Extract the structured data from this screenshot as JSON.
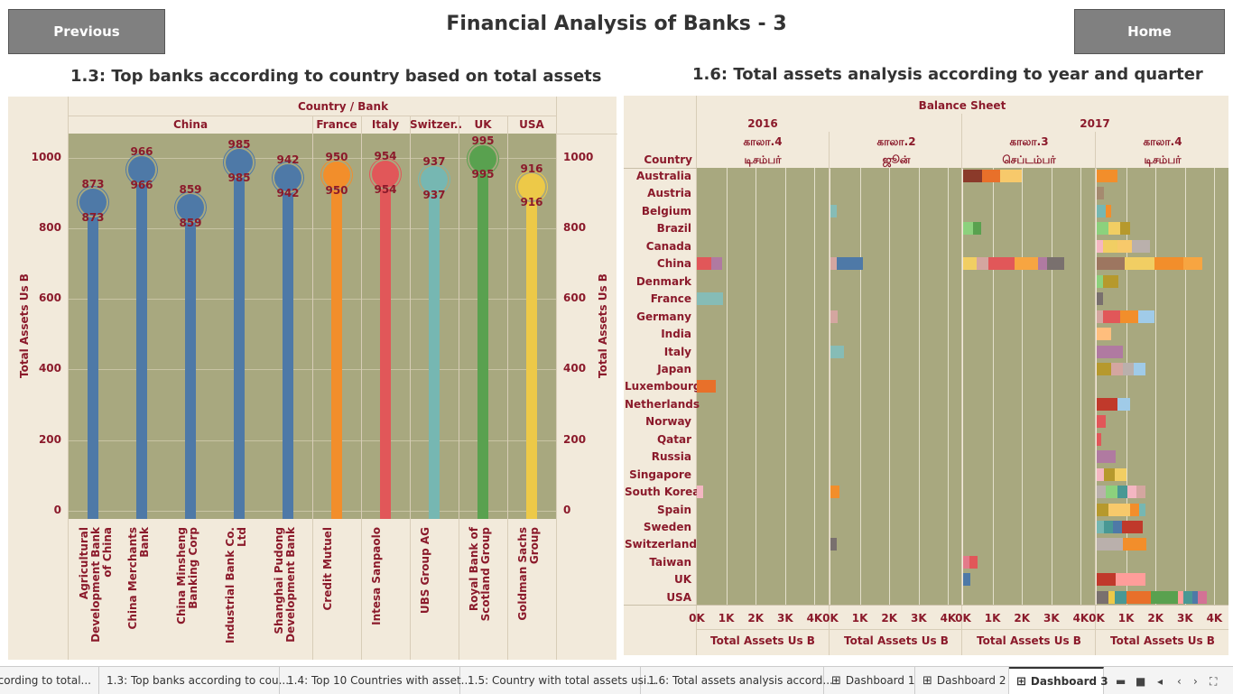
{
  "header": {
    "title": "Financial Analysis of Banks - 3",
    "previous_label": "Previous",
    "home_label": "Home"
  },
  "left_panel": {
    "title": "1.3: Top banks according to country based on total assets",
    "header_label": "Country / Bank"
  },
  "right_panel": {
    "title": "1.6: Total assets analysis according to year and quarter",
    "header_label": "Balance Sheet",
    "country_header": "Country"
  },
  "colors": {
    "plot_bg": "#a8a87f",
    "panel_bg": "#f2eadb",
    "label": "#8b1a2b"
  },
  "chart_data": [
    {
      "type": "lollipop",
      "title": "1.3: Top banks according to country based on total assets",
      "ylabel": "Total Assets Us B",
      "ylim": [
        0,
        1100
      ],
      "yticks": [
        "0",
        "200",
        "400",
        "600",
        "800",
        "1000"
      ],
      "groups": [
        {
          "country": "China",
          "banks": [
            {
              "name": "Agricultural Development Bank of China",
              "value": 873,
              "label": "873",
              "color": "#4e79a7"
            },
            {
              "name": "China Merchants Bank",
              "value": 966,
              "label": "966",
              "color": "#4e79a7"
            },
            {
              "name": "China Minsheng Banking Corp",
              "value": 859,
              "label": "859",
              "color": "#4e79a7"
            },
            {
              "name": "Industrial Bank Co. Ltd",
              "value": 985,
              "label": "985",
              "color": "#4e79a7"
            },
            {
              "name": "Shanghai Pudong Development Bank",
              "value": 942,
              "label": "942",
              "color": "#4e79a7"
            }
          ]
        },
        {
          "country": "France",
          "banks": [
            {
              "name": "Credit Mutuel",
              "value": 950,
              "label": "950",
              "color": "#f28e2b"
            }
          ]
        },
        {
          "country": "Italy",
          "banks": [
            {
              "name": "Intesa Sanpaolo",
              "value": 954,
              "label": "954",
              "color": "#e15759"
            }
          ]
        },
        {
          "country": "Switzer..",
          "banks": [
            {
              "name": "UBS Group AG",
              "value": 937,
              "label": "937",
              "color": "#76b7b2"
            }
          ]
        },
        {
          "country": "UK",
          "banks": [
            {
              "name": "Royal Bank of Scotland Group",
              "value": 995,
              "label": "995",
              "color": "#59a14f"
            }
          ]
        },
        {
          "country": "USA",
          "banks": [
            {
              "name": "Goldman Sachs Group",
              "value": 916,
              "label": "916",
              "color": "#edc948"
            }
          ]
        }
      ]
    },
    {
      "type": "bar",
      "stacked": true,
      "title": "1.6: Total assets analysis according to year and quarter",
      "xlabel": "Total Assets Us B",
      "xlim": [
        0,
        4500
      ],
      "xticks": [
        "0K",
        "1K",
        "2K",
        "3K",
        "4K"
      ],
      "columns": [
        {
          "year": "2016",
          "quarter": "காலா.4",
          "month": "டிசம்பர்"
        },
        {
          "year": "",
          "quarter": "காலா.2",
          "month": "ஜூன்"
        },
        {
          "year": "2017",
          "quarter": "காலா.3",
          "month": "செப்டம்பர்"
        },
        {
          "year": "",
          "quarter": "காலா.4",
          "month": "டிசம்பர்"
        }
      ],
      "categories": [
        "Australia",
        "Austria",
        "Belgium",
        "Brazil",
        "Canada",
        "China",
        "Denmark",
        "France",
        "Germany",
        "India",
        "Italy",
        "Japan",
        "Luxembourg",
        "Netherlands",
        "Norway",
        "Qatar",
        "Russia",
        "Singapore",
        "South Korea",
        "Spain",
        "Sweden",
        "Switzerland",
        "Taiwan",
        "UK",
        "USA"
      ],
      "rows": [
        [
          [],
          [],
          [
            [
              650,
              "#8b3a2a"
            ],
            [
              600,
              "#e8702a"
            ],
            [
              750,
              "#f7c96b"
            ]
          ],
          [
            [
              700,
              "#f28e2b"
            ]
          ]
        ],
        [
          [],
          [],
          [],
          [
            [
              250,
              "#a58a6f"
            ]
          ]
        ],
        [
          [],
          [
            [
              200,
              "#86bcb6"
            ]
          ],
          [],
          [
            [
              300,
              "#76b7b2"
            ],
            [
              200,
              "#f28e2b"
            ]
          ]
        ],
        [
          [],
          [],
          [
            [
              350,
              "#8cd17d"
            ],
            [
              250,
              "#59a14f"
            ]
          ],
          [
            [
              400,
              "#8cd17d"
            ],
            [
              400,
              "#f1ce63"
            ],
            [
              350,
              "#b6992d"
            ]
          ]
        ],
        [
          [],
          [],
          [],
          [
            [
              200,
              "#f4b6c2"
            ],
            [
              500,
              "#f1ce63"
            ],
            [
              500,
              "#f7c96b"
            ],
            [
              600,
              "#bab0ac"
            ]
          ]
        ],
        [
          [
            [
              500,
              "#e15759"
            ],
            [
              350,
              "#b07aa1"
            ]
          ],
          [
            [
              200,
              "#d4a6a0"
            ],
            [
              900,
              "#4e79a7"
            ]
          ],
          [
            [
              450,
              "#f1ce63"
            ],
            [
              400,
              "#d4a6a0"
            ],
            [
              900,
              "#e15759"
            ],
            [
              800,
              "#f7a541"
            ],
            [
              300,
              "#b07aa1"
            ],
            [
              600,
              "#79706e"
            ]
          ],
          [
            [
              950,
              "#9d7660"
            ],
            [
              1000,
              "#f1ce63"
            ],
            [
              1000,
              "#f28e2b"
            ],
            [
              650,
              "#f7a541"
            ]
          ]
        ],
        [
          [],
          [],
          [],
          [
            [
              200,
              "#8cd17d"
            ],
            [
              550,
              "#b6992d"
            ]
          ]
        ],
        [
          [
            [
              900,
              "#86bcb6"
            ]
          ],
          [],
          [],
          [
            [
              200,
              "#79706e"
            ]
          ]
        ],
        [
          [],
          [
            [
              250,
              "#d4a6a0"
            ]
          ],
          [],
          [
            [
              200,
              "#d4a6a0"
            ],
            [
              600,
              "#e15759"
            ],
            [
              600,
              "#f28e2b"
            ],
            [
              550,
              "#a0cbe8"
            ]
          ]
        ],
        [
          [],
          [],
          [],
          [
            [
              500,
              "#ffbe7d"
            ]
          ]
        ],
        [
          [],
          [
            [
              450,
              "#86bcb6"
            ]
          ],
          [],
          [
            [
              900,
              "#b07aa1"
            ]
          ]
        ],
        [
          [],
          [],
          [],
          [
            [
              500,
              "#b6992d"
            ],
            [
              400,
              "#d4a6a0"
            ],
            [
              350,
              "#bab0ac"
            ],
            [
              400,
              "#a0cbe8"
            ]
          ]
        ],
        [
          [
            [
              650,
              "#e8702a"
            ]
          ],
          [],
          [],
          []
        ],
        [
          [],
          [],
          [],
          [
            [
              700,
              "#c0392b"
            ],
            [
              450,
              "#a0cbe8"
            ]
          ]
        ],
        [
          [],
          [],
          [],
          [
            [
              300,
              "#e15759"
            ]
          ]
        ],
        [
          [],
          [],
          [],
          [
            [
              150,
              "#e15759"
            ]
          ]
        ],
        [
          [],
          [],
          [],
          [
            [
              650,
              "#b07aa1"
            ]
          ]
        ],
        [
          [],
          [],
          [],
          [
            [
              250,
              "#f4b6c2"
            ],
            [
              350,
              "#b6992d"
            ],
            [
              400,
              "#f1ce63"
            ]
          ]
        ],
        [
          [
            [
              200,
              "#f4b6c2"
            ]
          ],
          [
            [
              300,
              "#f28e2b"
            ]
          ],
          [],
          [
            [
              300,
              "#bab0ac"
            ],
            [
              400,
              "#8cd17d"
            ],
            [
              350,
              "#499894"
            ],
            [
              300,
              "#f4b6c2"
            ],
            [
              300,
              "#d4a6a0"
            ]
          ]
        ],
        [
          [],
          [],
          [],
          [
            [
              400,
              "#b6992d"
            ],
            [
              750,
              "#f7c96b"
            ],
            [
              300,
              "#f28e2b"
            ],
            [
              200,
              "#76b7b2"
            ]
          ]
        ],
        [
          [],
          [],
          [],
          [
            [
              250,
              "#76b7b2"
            ],
            [
              300,
              "#499894"
            ],
            [
              300,
              "#4e79a7"
            ],
            [
              700,
              "#c0392b"
            ]
          ]
        ],
        [
          [],
          [
            [
              200,
              "#79706e"
            ]
          ],
          [],
          [
            [
              900,
              "#bab0ac"
            ],
            [
              800,
              "#f28e2b"
            ]
          ]
        ],
        [
          [],
          [],
          [
            [
              200,
              "#e37a8a"
            ],
            [
              300,
              "#e15759"
            ]
          ],
          []
        ],
        [
          [],
          [],
          [
            [
              250,
              "#4e79a7"
            ]
          ],
          [
            [
              650,
              "#c0392b"
            ],
            [
              1000,
              "#ff9d9a"
            ]
          ]
        ],
        [
          [],
          [],
          [],
          [
            [
              400,
              "#79706e"
            ],
            [
              200,
              "#edc948"
            ],
            [
              400,
              "#499894"
            ],
            [
              850,
              "#e8702a"
            ],
            [
              900,
              "#59a14f"
            ],
            [
              200,
              "#ff9d9a"
            ],
            [
              300,
              "#499894"
            ],
            [
              200,
              "#4e79a7"
            ],
            [
              300,
              "#d37295"
            ]
          ]
        ]
      ]
    }
  ],
  "tabs": [
    {
      "label": "according to total..."
    },
    {
      "label": "1.3: Top banks according to cou..."
    },
    {
      "label": "1.4: Top 10 Countries with asset..."
    },
    {
      "label": "1.5: Country with total assets usi..."
    },
    {
      "label": "1.6: Total assets analysis accord..."
    },
    {
      "label": "Dashboard 1"
    },
    {
      "label": "Dashboard 2"
    },
    {
      "label": "Dashboard 3"
    }
  ],
  "tab_controls": {
    "grid_icon": "⊞",
    "filmstrip_icon": "▬",
    "square_icon": "■",
    "first_icon": "◂",
    "prev_icon": "‹",
    "next_icon": "›",
    "fullscreen_icon": "⛶",
    "menu_icon": "☰"
  }
}
